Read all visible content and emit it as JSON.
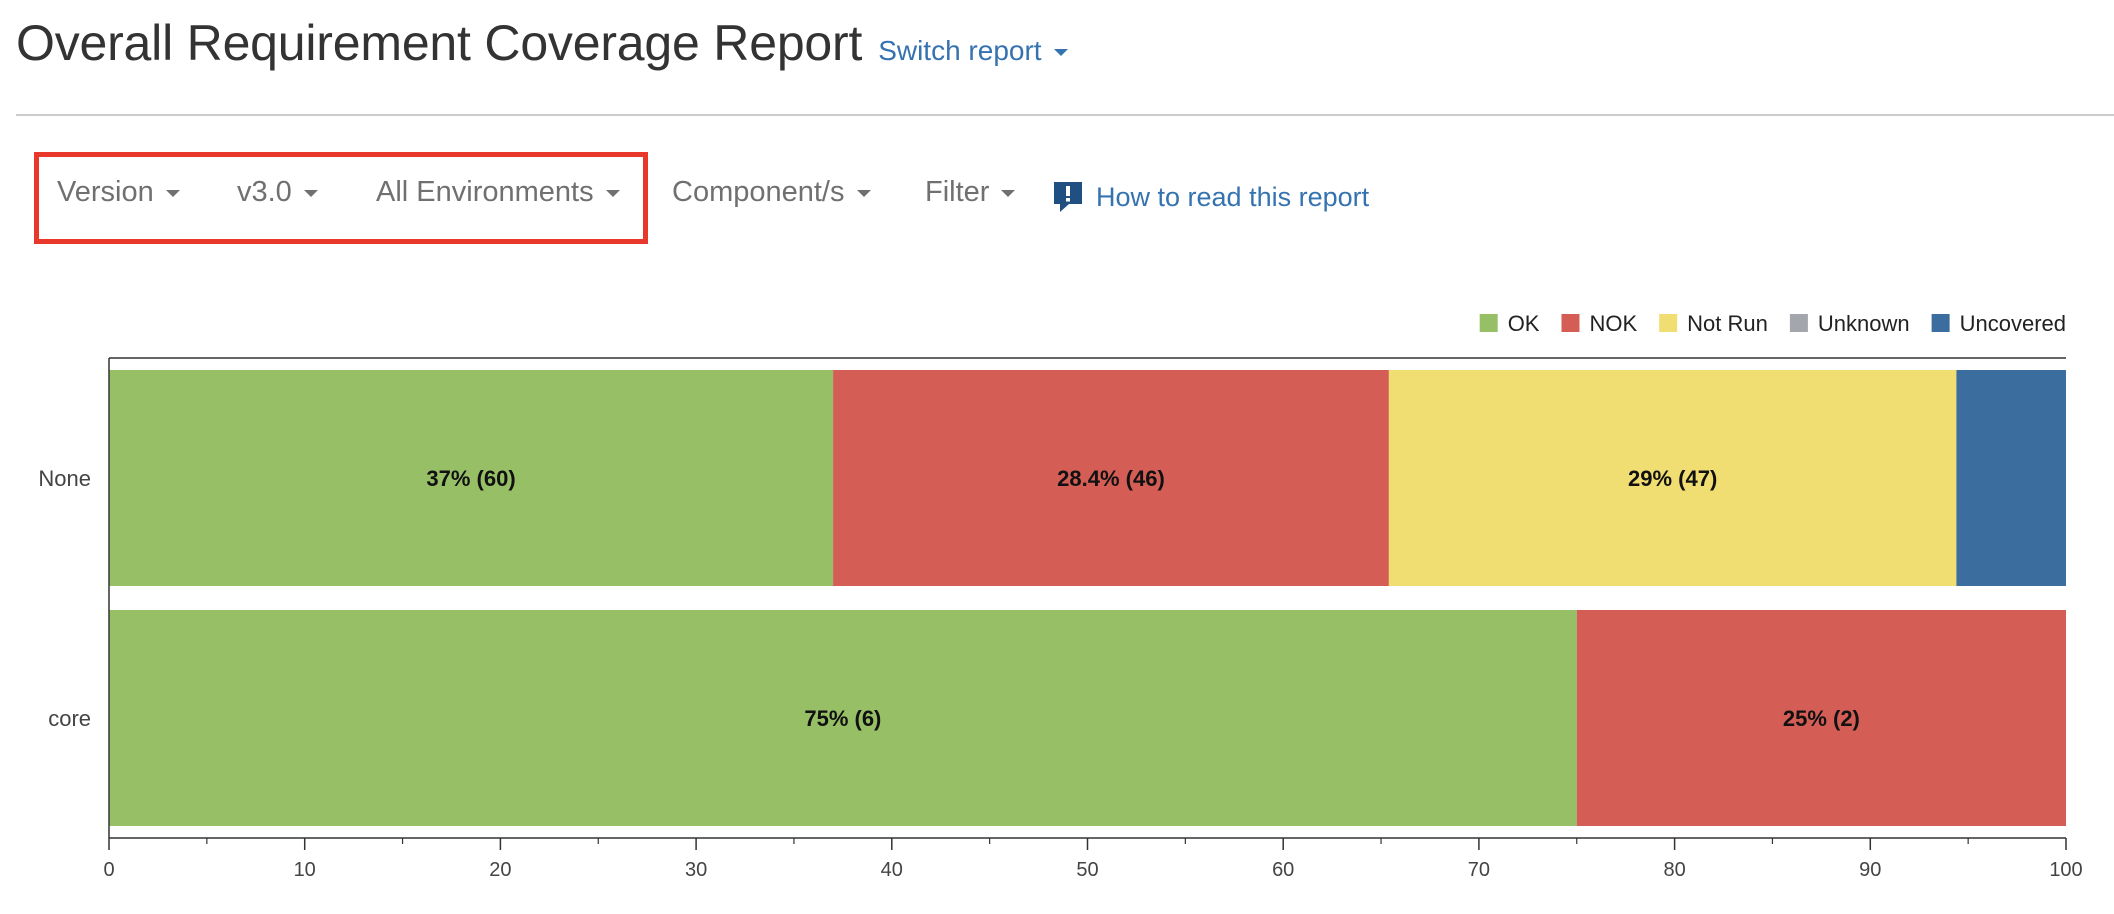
{
  "header": {
    "title": "Overall Requirement Coverage Report",
    "switch_report": "Switch report"
  },
  "toolbar": {
    "version_label": "Version",
    "version_value": "v3.0",
    "environments": "All Environments",
    "components": "Component/s",
    "filter": "Filter",
    "help_link": "How to read this report"
  },
  "colors": {
    "ok": "#97bf66",
    "nok": "#d45d55",
    "not_run": "#f0de72",
    "unknown": "#a3a6ad",
    "uncovered": "#3b6e9e",
    "link": "#3572b0",
    "highlight_box": "#e8372b"
  },
  "icons": {
    "help": "exclamation-speech-bubble-icon",
    "dropdown": "chevron-down-icon"
  },
  "chart_data": {
    "type": "bar",
    "orientation": "horizontal",
    "stacked": true,
    "categories": [
      "None",
      "core"
    ],
    "series": [
      {
        "name": "OK",
        "color": "#97bf66",
        "values": [
          37,
          75
        ],
        "labels": [
          "37% (60)",
          "75% (6)"
        ]
      },
      {
        "name": "NOK",
        "color": "#d45d55",
        "values": [
          28.4,
          25
        ],
        "labels": [
          "28.4% (46)",
          "25% (2)"
        ]
      },
      {
        "name": "Not Run",
        "color": "#f0de72",
        "values": [
          29,
          0
        ],
        "labels": [
          "29% (47)",
          ""
        ]
      },
      {
        "name": "Unknown",
        "color": "#a3a6ad",
        "values": [
          0,
          0
        ],
        "labels": [
          "",
          ""
        ]
      },
      {
        "name": "Uncovered",
        "color": "#3b6e9e",
        "values": [
          5.6,
          0
        ],
        "labels": [
          "",
          ""
        ]
      }
    ],
    "xlim": [
      0,
      100
    ],
    "xticks": [
      0,
      10,
      20,
      30,
      40,
      50,
      60,
      70,
      80,
      90,
      100
    ],
    "minor_ticks": true,
    "legend_position": "top-right",
    "grid": false
  }
}
